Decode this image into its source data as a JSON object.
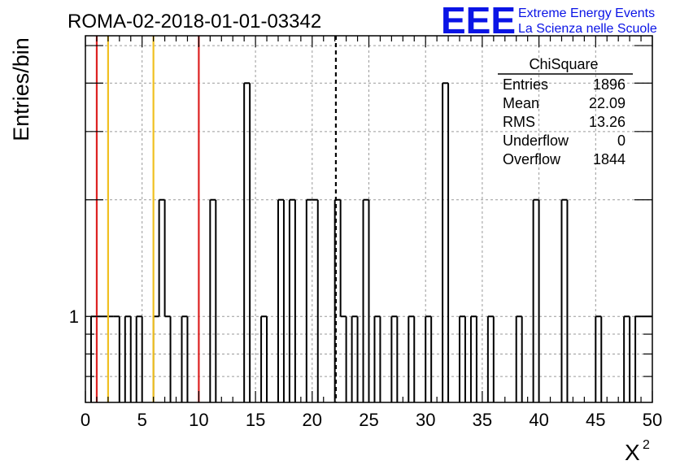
{
  "chart_data": {
    "type": "histogram",
    "title": "ROMA-02-2018-01-01-03342",
    "xlabel": "X",
    "xlabel_superscript": "2",
    "ylabel": "Entries/bin",
    "xlim": [
      0,
      50
    ],
    "ylim_log": [
      0.6,
      5.3
    ],
    "log_y": true,
    "grid": true,
    "x_ticks": [
      "0",
      "5",
      "10",
      "15",
      "20",
      "25",
      "30",
      "35",
      "40",
      "45",
      "50"
    ],
    "y_tick_labels": [
      "1"
    ],
    "bin_width": 0.5,
    "bins": [
      {
        "x": 0.5,
        "count": 1
      },
      {
        "x": 1.0,
        "count": 1
      },
      {
        "x": 1.5,
        "count": 1
      },
      {
        "x": 2.0,
        "count": 1
      },
      {
        "x": 2.5,
        "count": 1
      },
      {
        "x": 3.5,
        "count": 1
      },
      {
        "x": 4.5,
        "count": 1
      },
      {
        "x": 6.0,
        "count": 1
      },
      {
        "x": 6.5,
        "count": 2
      },
      {
        "x": 7.0,
        "count": 1
      },
      {
        "x": 8.5,
        "count": 1
      },
      {
        "x": 11.0,
        "count": 2
      },
      {
        "x": 14.0,
        "count": 4
      },
      {
        "x": 15.5,
        "count": 1
      },
      {
        "x": 17.0,
        "count": 2
      },
      {
        "x": 18.0,
        "count": 2
      },
      {
        "x": 19.5,
        "count": 2
      },
      {
        "x": 20.0,
        "count": 2
      },
      {
        "x": 22.0,
        "count": 2
      },
      {
        "x": 22.5,
        "count": 1
      },
      {
        "x": 23.5,
        "count": 1
      },
      {
        "x": 24.5,
        "count": 2
      },
      {
        "x": 25.5,
        "count": 1
      },
      {
        "x": 27.0,
        "count": 1
      },
      {
        "x": 28.5,
        "count": 1
      },
      {
        "x": 30.0,
        "count": 1
      },
      {
        "x": 31.5,
        "count": 4
      },
      {
        "x": 33.0,
        "count": 1
      },
      {
        "x": 34.0,
        "count": 1
      },
      {
        "x": 35.5,
        "count": 1
      },
      {
        "x": 38.0,
        "count": 1
      },
      {
        "x": 39.5,
        "count": 2
      },
      {
        "x": 42.0,
        "count": 2
      },
      {
        "x": 45.0,
        "count": 1
      },
      {
        "x": 47.5,
        "count": 1
      },
      {
        "x": 48.5,
        "count": 1
      },
      {
        "x": 49.0,
        "count": 1
      },
      {
        "x": 49.5,
        "count": 1
      }
    ],
    "vertical_lines": [
      {
        "x": 1.0,
        "color": "#dd2222",
        "style": "solid"
      },
      {
        "x": 2.0,
        "color": "#f0c020",
        "style": "solid"
      },
      {
        "x": 6.0,
        "color": "#f0c020",
        "style": "solid"
      },
      {
        "x": 10.0,
        "color": "#dd2222",
        "style": "solid"
      },
      {
        "x": 22.09,
        "color": "#000000",
        "style": "dashed"
      }
    ],
    "stats_box": {
      "title": "ChiSquare",
      "rows": [
        {
          "label": "Entries",
          "value": "1896"
        },
        {
          "label": "Mean",
          "value": "22.09"
        },
        {
          "label": "RMS",
          "value": "13.26"
        },
        {
          "label": "Underflow",
          "value": "0"
        },
        {
          "label": "Overflow",
          "value": "1844"
        }
      ]
    }
  },
  "logo": {
    "mark": "EEE",
    "line1": "Extreme Energy Events",
    "line2": "La Scienza nelle Scuole",
    "color": "#0a14e6"
  }
}
